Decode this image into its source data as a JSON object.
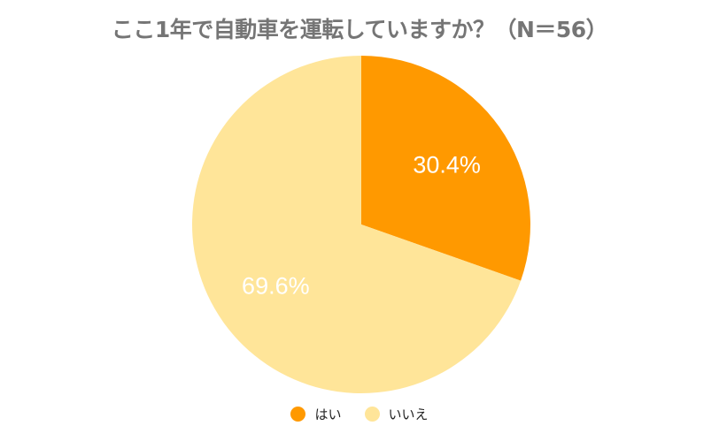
{
  "chart_data": {
    "type": "pie",
    "title": "ここ1年で自動車を運転していますか？（N＝56）",
    "categories": [
      "はい",
      "いいえ"
    ],
    "values": [
      30.4,
      69.6
    ],
    "labels": [
      "30.4%",
      "69.6%"
    ],
    "colors": [
      "#FF9900",
      "#FFE599"
    ],
    "legend_position": "bottom",
    "start_angle": "top, clockwise"
  },
  "legend": [
    {
      "label": "はい",
      "color": "#FF9900"
    },
    {
      "label": "いいえ",
      "color": "#FFE599"
    }
  ]
}
